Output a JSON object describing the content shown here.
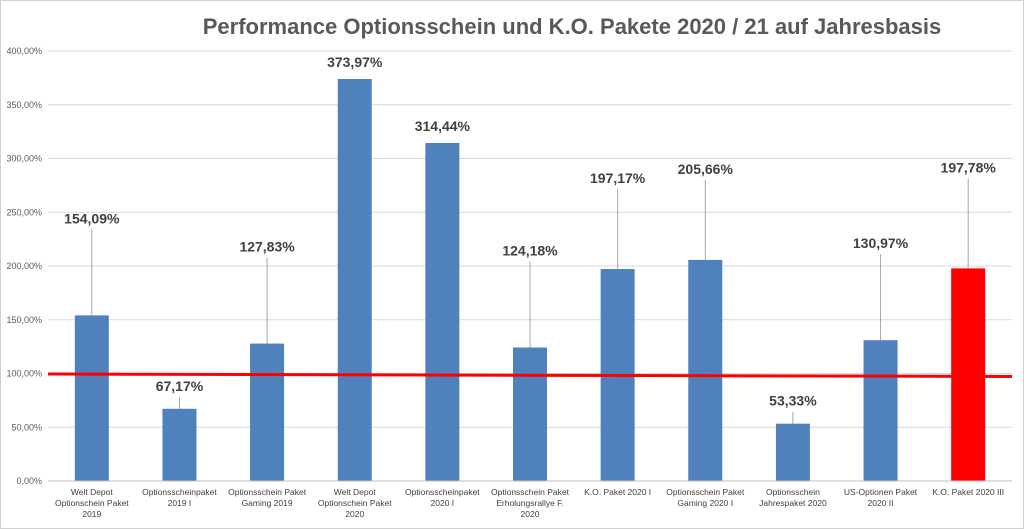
{
  "chart_data": {
    "type": "bar",
    "title": "Performance Optionsschein und K.O. Pakete 2020 / 21 auf Jahresbasis",
    "xlabel": "",
    "ylabel": "",
    "ylim": [
      0,
      400
    ],
    "yticks": [
      "0,00%",
      "50,00%",
      "100,00%",
      "150,00%",
      "200,00%",
      "250,00%",
      "300,00%",
      "350,00%",
      "400,00%"
    ],
    "yticks_values": [
      0,
      50,
      100,
      150,
      200,
      250,
      300,
      350,
      400
    ],
    "grid": true,
    "reference_line": {
      "value": 100,
      "color": "#ff0000"
    },
    "bar_color": "#4f81bd",
    "highlight_color": "#ff0000",
    "categories": [
      [
        "Welt Depot",
        "Optionschein Paket",
        "2019"
      ],
      [
        "Optionsscheinpaket",
        "2019 I"
      ],
      [
        "Optionsschein Paket",
        "Gaming 2019"
      ],
      [
        "Welt Depot",
        "Optionschein Paket",
        "2020"
      ],
      [
        "Optionsscheinpaket",
        "2020 I"
      ],
      [
        "Optionsschein Paket",
        "Erholungsrallye F.",
        "2020"
      ],
      [
        "K.O. Paket 2020 I"
      ],
      [
        "Optionsschein Paket",
        "Gaming 2020 I"
      ],
      [
        "Optionsschein",
        "Jahrespaket 2020"
      ],
      [
        "US-Optionen Paket",
        "2020 II"
      ],
      [
        "K.O. Paket 2020 III"
      ]
    ],
    "values": [
      154.09,
      67.17,
      127.83,
      373.97,
      314.44,
      124.18,
      197.17,
      205.66,
      53.33,
      130.97,
      197.78
    ],
    "labels": [
      "154,09%",
      "67,17%",
      "127,83%",
      "373,97%",
      "314,44%",
      "124,18%",
      "197,17%",
      "205,66%",
      "53,33%",
      "130,97%",
      "197,78%"
    ],
    "highlight_index": 10
  }
}
